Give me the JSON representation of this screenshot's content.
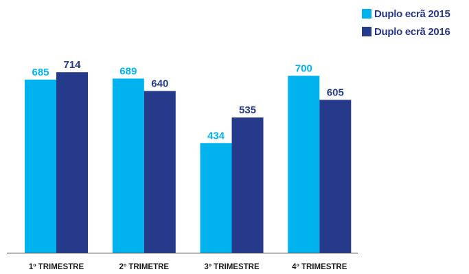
{
  "chart_data": {
    "type": "bar",
    "title": "",
    "xlabel": "",
    "ylabel": "",
    "categories": [
      "1º TRIMESTRE",
      "2º TRIMETRE",
      "3º TRIMESTRE",
      "4º TRIMESTRE"
    ],
    "series": [
      {
        "name": "Duplo ecrã 2015",
        "color": "#00b2ee",
        "values": [
          685,
          689,
          434,
          700
        ]
      },
      {
        "name": "Duplo ecrã 2016",
        "color": "#263a8c",
        "values": [
          714,
          640,
          535,
          605
        ]
      }
    ],
    "ylim": [
      0,
      1000
    ],
    "grid": false,
    "data_labels": true,
    "legend_position": "top-right"
  }
}
